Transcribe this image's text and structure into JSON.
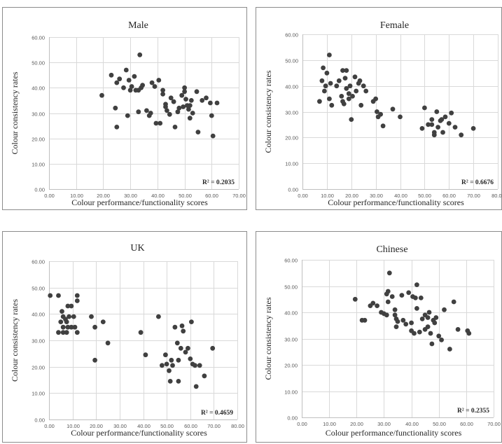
{
  "chart_data": [
    {
      "type": "scatter",
      "title": "Male",
      "xlabel": "Colour performance/functionality scores",
      "ylabel": "Colour consistency rates",
      "xlim": [
        0,
        70
      ],
      "ylim": [
        0,
        60
      ],
      "xticks": [
        "0.00",
        "10.00",
        "20.00",
        "30.00",
        "40.00",
        "50.00",
        "60.00",
        "70.00"
      ],
      "yticks": [
        "0.00",
        "10.00",
        "20.00",
        "30.00",
        "40.00",
        "50.00",
        "60.00"
      ],
      "grid": true,
      "annotation": "R² = 0.2035",
      "marker_color": "#404040",
      "points": [
        [
          19.5,
          37
        ],
        [
          23,
          45
        ],
        [
          24.5,
          32
        ],
        [
          25,
          24.5
        ],
        [
          25,
          42
        ],
        [
          26,
          43.5
        ],
        [
          27.5,
          40
        ],
        [
          28.5,
          47
        ],
        [
          29,
          29
        ],
        [
          29.5,
          43
        ],
        [
          30,
          39
        ],
        [
          30.5,
          40.5
        ],
        [
          31.5,
          44.5
        ],
        [
          32,
          39
        ],
        [
          33,
          39
        ],
        [
          33,
          30.5
        ],
        [
          33.5,
          53
        ],
        [
          34,
          40
        ],
        [
          34.5,
          41
        ],
        [
          36,
          31
        ],
        [
          37,
          29
        ],
        [
          37.5,
          30
        ],
        [
          38,
          42
        ],
        [
          39,
          40.5
        ],
        [
          39.5,
          26
        ],
        [
          40.5,
          43
        ],
        [
          41,
          26
        ],
        [
          42,
          39
        ],
        [
          42,
          37.5
        ],
        [
          43,
          33.5
        ],
        [
          43,
          32.5
        ],
        [
          43.5,
          31
        ],
        [
          44.5,
          29.5
        ],
        [
          45,
          36
        ],
        [
          46,
          34.5
        ],
        [
          46.5,
          24.5
        ],
        [
          47.5,
          30.5
        ],
        [
          48,
          32
        ],
        [
          49,
          37
        ],
        [
          49.5,
          32.5
        ],
        [
          50,
          38.5
        ],
        [
          50,
          40
        ],
        [
          50.5,
          35.5
        ],
        [
          51,
          33
        ],
        [
          51.5,
          31.5
        ],
        [
          52,
          28
        ],
        [
          52,
          33
        ],
        [
          52.5,
          35
        ],
        [
          53,
          30
        ],
        [
          54.5,
          38.5
        ],
        [
          55,
          22.5
        ],
        [
          56.5,
          35
        ],
        [
          58,
          36
        ],
        [
          59.5,
          34
        ],
        [
          60,
          29
        ],
        [
          60.5,
          21
        ],
        [
          62,
          34
        ]
      ]
    },
    {
      "type": "scatter",
      "title": "Female",
      "xlabel": "Colour performance/functionality scores",
      "ylabel": "Colour consistency rates",
      "xlim": [
        0,
        80
      ],
      "ylim": [
        0,
        60
      ],
      "xticks": [
        "0.00",
        "10.00",
        "20.00",
        "30.00",
        "40.00",
        "50.00",
        "60.00",
        "70.00",
        "80.00"
      ],
      "yticks": [
        "0.00",
        "10.00",
        "20.00",
        "30.00",
        "40.00",
        "50.00",
        "60.00"
      ],
      "grid": true,
      "annotation": "R² = 0.6676",
      "marker_color": "#404040",
      "points": [
        [
          7,
          34
        ],
        [
          8,
          42
        ],
        [
          8.5,
          47
        ],
        [
          9,
          38
        ],
        [
          9.5,
          40
        ],
        [
          10,
          45
        ],
        [
          11,
          52
        ],
        [
          11,
          35
        ],
        [
          11.5,
          41
        ],
        [
          12,
          32.5
        ],
        [
          14,
          40
        ],
        [
          15,
          42
        ],
        [
          16,
          36
        ],
        [
          16.5,
          34
        ],
        [
          16.5,
          46
        ],
        [
          17,
          33
        ],
        [
          17.5,
          43
        ],
        [
          18,
          46
        ],
        [
          18,
          39
        ],
        [
          19,
          37
        ],
        [
          19,
          35
        ],
        [
          19.5,
          40
        ],
        [
          20,
          27
        ],
        [
          20.5,
          36
        ],
        [
          21.5,
          43.5
        ],
        [
          22,
          38
        ],
        [
          23,
          41
        ],
        [
          23.5,
          42
        ],
        [
          24,
          32.5
        ],
        [
          25,
          40
        ],
        [
          26,
          38
        ],
        [
          29,
          34
        ],
        [
          30,
          35
        ],
        [
          30.5,
          30
        ],
        [
          31,
          28
        ],
        [
          32,
          29
        ],
        [
          33,
          24.5
        ],
        [
          37,
          31
        ],
        [
          40,
          28
        ],
        [
          49,
          23.5
        ],
        [
          50,
          31.5
        ],
        [
          51.5,
          25
        ],
        [
          53,
          27
        ],
        [
          53,
          25
        ],
        [
          54,
          22
        ],
        [
          54,
          21
        ],
        [
          55,
          30
        ],
        [
          55.5,
          24
        ],
        [
          56.5,
          26.5
        ],
        [
          57,
          27
        ],
        [
          57.5,
          22
        ],
        [
          58.5,
          28
        ],
        [
          60,
          25.5
        ],
        [
          61,
          29.5
        ],
        [
          62.5,
          24
        ],
        [
          65,
          21
        ],
        [
          70,
          23.5
        ]
      ]
    },
    {
      "type": "scatter",
      "title": "UK",
      "xlabel": "Colour performance/functionality scores",
      "ylabel": "Colour consistency rates",
      "xlim": [
        0,
        80
      ],
      "ylim": [
        0,
        60
      ],
      "xticks": [
        "0.00",
        "10.00",
        "20.00",
        "30.00",
        "40.00",
        "50.00",
        "60.00",
        "70.00",
        "80.00"
      ],
      "yticks": [
        "0.00",
        "10.00",
        "20.00",
        "30.00",
        "40.00",
        "50.00",
        "60.00"
      ],
      "grid": true,
      "annotation": "R² = 0.4659",
      "marker_color": "#404040",
      "points": [
        [
          0.5,
          47
        ],
        [
          4,
          47
        ],
        [
          4,
          33
        ],
        [
          5,
          37
        ],
        [
          5.5,
          41
        ],
        [
          6,
          39
        ],
        [
          6,
          35
        ],
        [
          6,
          33
        ],
        [
          7,
          38
        ],
        [
          7.5,
          37
        ],
        [
          7.5,
          33
        ],
        [
          8,
          43
        ],
        [
          8,
          35
        ],
        [
          8.5,
          39
        ],
        [
          9.5,
          43
        ],
        [
          9.5,
          35
        ],
        [
          10.5,
          39
        ],
        [
          11,
          35
        ],
        [
          12,
          45
        ],
        [
          12,
          47
        ],
        [
          12,
          33
        ],
        [
          18,
          39
        ],
        [
          19.5,
          35
        ],
        [
          19.5,
          22.5
        ],
        [
          23,
          37
        ],
        [
          25,
          29
        ],
        [
          39,
          33
        ],
        [
          41,
          24.5
        ],
        [
          46.5,
          39
        ],
        [
          48,
          20.5
        ],
        [
          49.5,
          24.5
        ],
        [
          50,
          21
        ],
        [
          51,
          18.5
        ],
        [
          51.5,
          14.5
        ],
        [
          52,
          22.5
        ],
        [
          52.5,
          20.5
        ],
        [
          53.5,
          35
        ],
        [
          54.5,
          29
        ],
        [
          55,
          22.5
        ],
        [
          55,
          14.5
        ],
        [
          56,
          27
        ],
        [
          56.5,
          35.5
        ],
        [
          57,
          33.5
        ],
        [
          58,
          25.5
        ],
        [
          59,
          27
        ],
        [
          60,
          23
        ],
        [
          60.5,
          37
        ],
        [
          61,
          21
        ],
        [
          62,
          20.5
        ],
        [
          62.5,
          12.5
        ],
        [
          64,
          20.5
        ],
        [
          66,
          16.5
        ],
        [
          69.5,
          27
        ]
      ]
    },
    {
      "type": "scatter",
      "title": "Chinese",
      "xlabel": "Colour performance/functionality scores",
      "ylabel": "Colour consistency rates",
      "xlim": [
        0,
        70
      ],
      "ylim": [
        0,
        60
      ],
      "xticks": [
        "0.00",
        "10.00",
        "20.00",
        "30.00",
        "40.00",
        "50.00",
        "60.00",
        "70.00"
      ],
      "yticks": [
        "0.00",
        "10.00",
        "20.00",
        "30.00",
        "40.00",
        "50.00",
        "60.00"
      ],
      "grid": true,
      "annotation": "R² = 0.2355",
      "marker_color": "#404040",
      "points": [
        [
          19.5,
          45
        ],
        [
          22,
          37
        ],
        [
          23,
          37
        ],
        [
          25,
          42.5
        ],
        [
          26,
          43.5
        ],
        [
          27.5,
          42.5
        ],
        [
          29,
          40
        ],
        [
          30,
          39.5
        ],
        [
          31,
          47
        ],
        [
          31,
          39
        ],
        [
          31.5,
          48
        ],
        [
          31.5,
          44
        ],
        [
          32,
          55
        ],
        [
          33,
          46
        ],
        [
          34,
          41
        ],
        [
          34,
          39
        ],
        [
          34.5,
          37.5
        ],
        [
          34.5,
          34.5
        ],
        [
          35,
          36.5
        ],
        [
          36.5,
          46.5
        ],
        [
          37,
          37
        ],
        [
          38,
          35.5
        ],
        [
          39,
          47.5
        ],
        [
          40,
          36
        ],
        [
          40,
          33
        ],
        [
          40.5,
          46
        ],
        [
          41,
          32
        ],
        [
          41.5,
          45.5
        ],
        [
          42,
          50.5
        ],
        [
          42,
          41.5
        ],
        [
          43,
          32.5
        ],
        [
          43.5,
          45.5
        ],
        [
          44,
          37.5
        ],
        [
          45,
          39
        ],
        [
          45,
          33.5
        ],
        [
          46,
          38
        ],
        [
          46,
          34.5
        ],
        [
          46.5,
          40
        ],
        [
          47,
          32
        ],
        [
          47.5,
          28
        ],
        [
          48,
          37
        ],
        [
          48.5,
          36
        ],
        [
          49,
          38
        ],
        [
          50,
          31
        ],
        [
          51,
          29.5
        ],
        [
          52,
          41
        ],
        [
          54,
          26
        ],
        [
          55.5,
          44
        ],
        [
          57,
          33.5
        ],
        [
          60.5,
          33
        ],
        [
          61,
          32
        ]
      ]
    }
  ]
}
